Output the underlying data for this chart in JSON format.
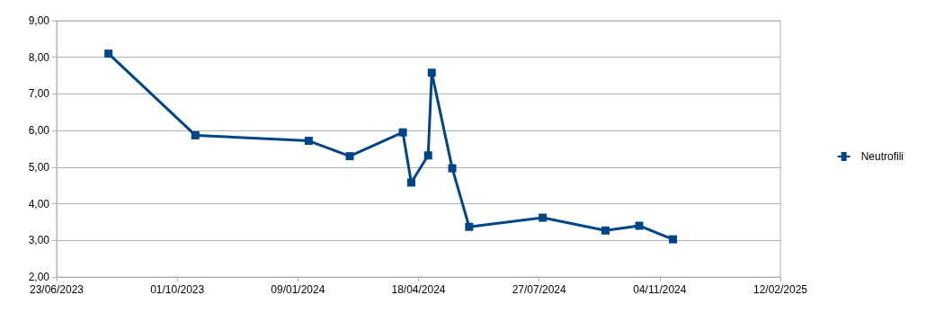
{
  "chart_data": {
    "type": "line",
    "x": [
      "2023-08-05",
      "2023-10-16",
      "2024-01-18",
      "2024-02-21",
      "2024-04-05",
      "2024-04-12",
      "2024-04-26",
      "2024-04-29",
      "2024-05-16",
      "2024-05-30",
      "2024-07-30",
      "2024-09-20",
      "2024-10-18",
      "2024-11-15"
    ],
    "series": [
      {
        "name": "Neutrofili",
        "color": "#004586",
        "values": [
          8.1,
          5.87,
          5.72,
          5.3,
          5.95,
          4.58,
          5.32,
          7.58,
          4.97,
          3.37,
          3.62,
          3.27,
          3.4,
          3.03
        ]
      }
    ],
    "xlim": [
      "2023-06-23",
      "2025-02-12"
    ],
    "xticks": [
      {
        "value": "2023-06-23",
        "label": "23/06/2023"
      },
      {
        "value": "2023-10-01",
        "label": "01/10/2023"
      },
      {
        "value": "2024-01-09",
        "label": "09/01/2024"
      },
      {
        "value": "2024-04-18",
        "label": "18/04/2024"
      },
      {
        "value": "2024-07-27",
        "label": "27/07/2024"
      },
      {
        "value": "2024-11-04",
        "label": "04/11/2024"
      },
      {
        "value": "2025-02-12",
        "label": "12/02/2025"
      }
    ],
    "ylim": [
      2,
      9
    ],
    "yticks": [
      {
        "value": 2,
        "label": "2,00"
      },
      {
        "value": 3,
        "label": "3,00"
      },
      {
        "value": 4,
        "label": "4,00"
      },
      {
        "value": 5,
        "label": "5,00"
      },
      {
        "value": 6,
        "label": "6,00"
      },
      {
        "value": 7,
        "label": "7,00"
      },
      {
        "value": 8,
        "label": "8,00"
      },
      {
        "value": 9,
        "label": "9,00"
      }
    ],
    "grid": "y",
    "legend": "right",
    "marker": "square",
    "line_style": "solid"
  }
}
